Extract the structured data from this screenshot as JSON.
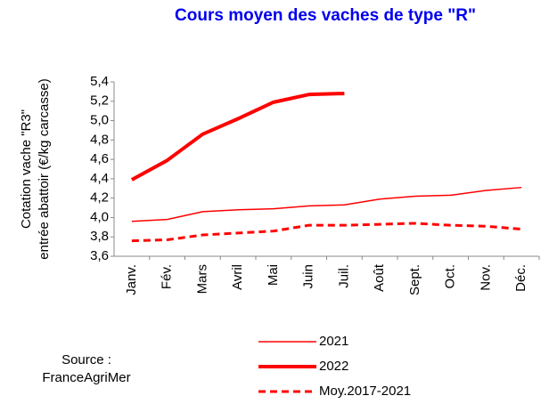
{
  "chart_data": {
    "type": "line",
    "title": "Cours moyen des vaches de type \"R\"",
    "y_label": [
      "Cotation vache \"R3\"",
      "entrée abattoir (€/kg carcasse)"
    ],
    "source": [
      "Source :",
      "FranceAgriMer"
    ],
    "categories": [
      "Janv.",
      "Fév.",
      "Mars",
      "Avril",
      "Mai",
      "Juin",
      "Juil.",
      "Août",
      "Sept.",
      "Oct.",
      "Nov.",
      "Déc."
    ],
    "series": [
      {
        "name": "2021",
        "color": "#ff0000",
        "width": 1.5,
        "dash": false,
        "values": [
          3.96,
          3.98,
          4.06,
          4.08,
          4.09,
          4.12,
          4.13,
          4.19,
          4.22,
          4.23,
          4.28,
          4.31
        ]
      },
      {
        "name": "2022",
        "color": "#ff0000",
        "width": 4,
        "dash": false,
        "values": [
          4.39,
          4.59,
          4.86,
          5.02,
          5.19,
          5.27,
          5.28,
          null,
          null,
          null,
          null,
          null
        ]
      },
      {
        "name": "Moy.2017-2021",
        "color": "#ff0000",
        "width": 3,
        "dash": true,
        "values": [
          3.76,
          3.77,
          3.82,
          3.84,
          3.86,
          3.92,
          3.92,
          3.93,
          3.94,
          3.92,
          3.91,
          3.88
        ]
      }
    ],
    "ylim": [
      3.6,
      5.4
    ],
    "yticks": [
      {
        "value": 3.6,
        "label": "3,6"
      },
      {
        "value": 3.8,
        "label": "3,8"
      },
      {
        "value": 4.0,
        "label": "4,0"
      },
      {
        "value": 4.2,
        "label": "4,2"
      },
      {
        "value": 4.4,
        "label": "4,4"
      },
      {
        "value": 4.6,
        "label": "4,6"
      },
      {
        "value": 4.8,
        "label": "4,8"
      },
      {
        "value": 5.0,
        "label": "5,0"
      },
      {
        "value": 5.2,
        "label": "5,2"
      },
      {
        "value": 5.4,
        "label": "5,4"
      }
    ],
    "grid": false
  }
}
